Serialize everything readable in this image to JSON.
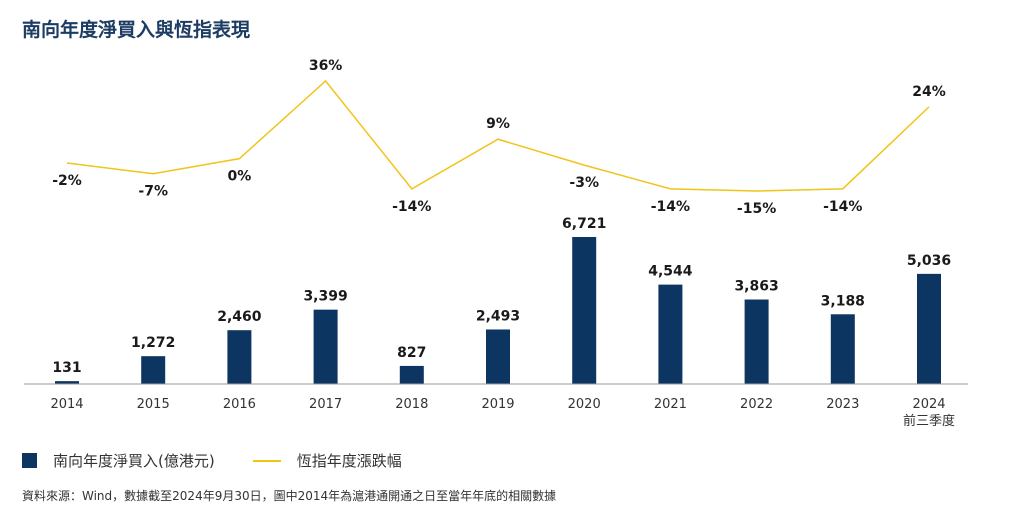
{
  "title": "南向年度淨買入與恆指表現",
  "chart_data": {
    "type": "bar",
    "categories": [
      "2014",
      "2015",
      "2016",
      "2017",
      "2018",
      "2019",
      "2020",
      "2021",
      "2022",
      "2023",
      "2024"
    ],
    "category_sublabels": [
      "",
      "",
      "",
      "",
      "",
      "",
      "",
      "",
      "",
      "",
      "前三季度"
    ],
    "series": [
      {
        "name": "南向年度淨買入(億港元)",
        "type": "bar",
        "color": "#0d3561",
        "values": [
          131,
          1272,
          2460,
          3399,
          827,
          2493,
          6721,
          4544,
          3863,
          3188,
          5036
        ],
        "labels": [
          "131",
          "1,272",
          "2,460",
          "3,399",
          "827",
          "2,493",
          "6,721",
          "4,544",
          "3,863",
          "3,188",
          "5,036"
        ]
      },
      {
        "name": "恆指年度漲跌幅",
        "type": "line",
        "color": "#f0c419",
        "values": [
          -2,
          -7,
          0,
          36,
          -14,
          9,
          -3,
          -14,
          -15,
          -14,
          24
        ],
        "labels": [
          "-2%",
          "-7%",
          "0%",
          "36%",
          "-14%",
          "9%",
          "-3%",
          "-14%",
          "-15%",
          "-14%",
          "24%"
        ]
      }
    ],
    "bar_ylim": [
      0,
      6721
    ],
    "line_ylim": [
      -15,
      36
    ],
    "grid": false,
    "legend": "bottom-left"
  },
  "legend": {
    "bar_label": "南向年度淨買入(億港元)",
    "line_label": "恆指年度漲跌幅"
  },
  "source": "資料來源：Wind，數據截至2024年9月30日，圖中2014年為滬港通開通之日至當年年底的相關數據"
}
